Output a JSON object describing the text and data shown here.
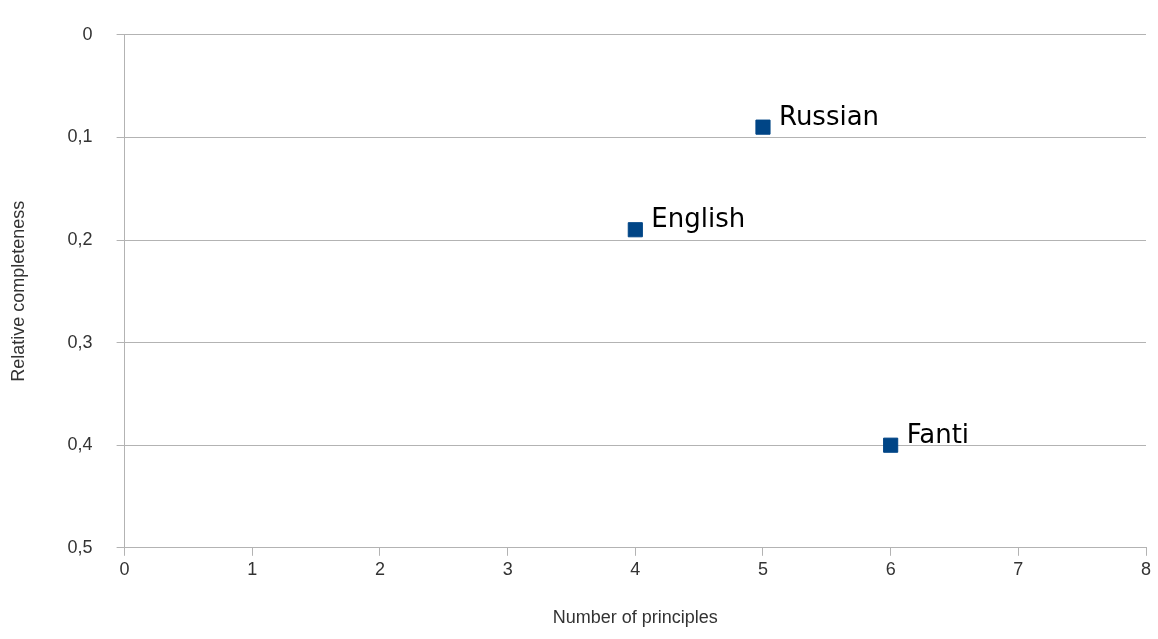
{
  "chart_data": {
    "type": "scatter",
    "xlabel": "Number of principles",
    "ylabel": "Relative completeness",
    "series": [
      {
        "color": "#004586",
        "x": [
          5,
          4,
          6
        ],
        "values": [
          0.09,
          0.19,
          0.4
        ]
      }
    ],
    "annotations": [
      {
        "text": "Russian",
        "x": 5,
        "y": 0.09
      },
      {
        "text": "English",
        "x": 4,
        "y": 0.19
      },
      {
        "text": "Fanti",
        "x": 6,
        "y": 0.4
      }
    ],
    "xlim": [
      0,
      8
    ],
    "xticks": [
      0,
      1,
      2,
      3,
      4,
      5,
      6,
      7,
      8
    ],
    "ylim": [
      0.5,
      0
    ],
    "yticks": [
      {
        "value": 0,
        "label": "0"
      },
      {
        "value": 0.1,
        "label": "0,1"
      },
      {
        "value": 0.2,
        "label": "0,2"
      },
      {
        "value": 0.3,
        "label": "0,3"
      },
      {
        "value": 0.4,
        "label": "0,4"
      },
      {
        "value": 0.5,
        "label": "0,5"
      }
    ],
    "grid": "y",
    "legend": false,
    "marker": "square"
  }
}
